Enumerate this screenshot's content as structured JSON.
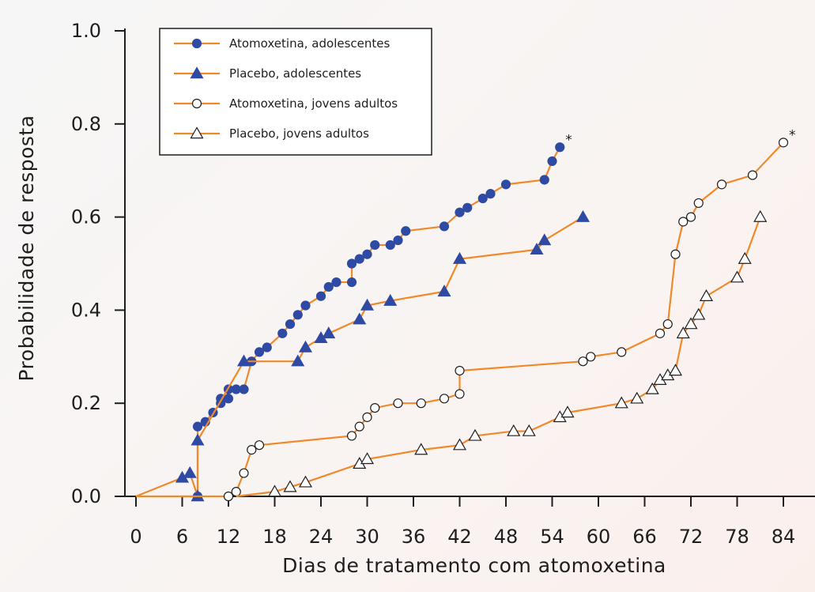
{
  "chart_data": {
    "type": "line",
    "xlabel": "Dias de tratamento com atomoxetina",
    "ylabel": "Probabilidade de resposta",
    "xlim": [
      0,
      84
    ],
    "ylim": [
      0,
      1.0
    ],
    "x_ticks": [
      "0",
      "6",
      "12",
      "18",
      "24",
      "30",
      "36",
      "42",
      "48",
      "54",
      "60",
      "66",
      "72",
      "78",
      "84"
    ],
    "y_ticks": [
      "0.0",
      "0.2",
      "0.4",
      "0.6",
      "0.8",
      "1.0"
    ],
    "grid": false,
    "legend_position": "top-left",
    "line_color": "#f0892a",
    "series": [
      {
        "name": "Atomoxetina, adolescentes",
        "marker": "filled-circle",
        "marker_color": "#2f4aa3",
        "end_annotation": "*",
        "points": [
          [
            0,
            0.0
          ],
          [
            8,
            0.0
          ],
          [
            8,
            0.15
          ],
          [
            9,
            0.16
          ],
          [
            10,
            0.18
          ],
          [
            11,
            0.2
          ],
          [
            11,
            0.21
          ],
          [
            12,
            0.21
          ],
          [
            12,
            0.23
          ],
          [
            13,
            0.23
          ],
          [
            14,
            0.23
          ],
          [
            15,
            0.29
          ],
          [
            16,
            0.31
          ],
          [
            17,
            0.32
          ],
          [
            19,
            0.35
          ],
          [
            20,
            0.37
          ],
          [
            21,
            0.39
          ],
          [
            22,
            0.41
          ],
          [
            24,
            0.43
          ],
          [
            25,
            0.45
          ],
          [
            26,
            0.46
          ],
          [
            28,
            0.46
          ],
          [
            28,
            0.5
          ],
          [
            29,
            0.51
          ],
          [
            30,
            0.52
          ],
          [
            31,
            0.54
          ],
          [
            33,
            0.54
          ],
          [
            34,
            0.55
          ],
          [
            35,
            0.57
          ],
          [
            40,
            0.58
          ],
          [
            42,
            0.61
          ],
          [
            43,
            0.62
          ],
          [
            45,
            0.64
          ],
          [
            46,
            0.65
          ],
          [
            48,
            0.67
          ],
          [
            53,
            0.68
          ],
          [
            54,
            0.72
          ],
          [
            55,
            0.75
          ]
        ]
      },
      {
        "name": "Placebo, adolescentes",
        "marker": "filled-triangle",
        "marker_color": "#2f4aa3",
        "points": [
          [
            0,
            0.0
          ],
          [
            6,
            0.04
          ],
          [
            7,
            0.05
          ],
          [
            8,
            0.0
          ],
          [
            8,
            0.12
          ],
          [
            14,
            0.29
          ],
          [
            21,
            0.29
          ],
          [
            22,
            0.32
          ],
          [
            24,
            0.34
          ],
          [
            25,
            0.35
          ],
          [
            29,
            0.38
          ],
          [
            30,
            0.41
          ],
          [
            33,
            0.42
          ],
          [
            40,
            0.44
          ],
          [
            42,
            0.51
          ],
          [
            52,
            0.53
          ],
          [
            53,
            0.55
          ],
          [
            58,
            0.6
          ]
        ]
      },
      {
        "name": "Atomoxetina, jovens adultos",
        "marker": "open-circle",
        "marker_color": "#ffffff",
        "end_annotation": "*",
        "points": [
          [
            6,
            0.0
          ],
          [
            12,
            0.0
          ],
          [
            13,
            0.01
          ],
          [
            14,
            0.05
          ],
          [
            15,
            0.1
          ],
          [
            16,
            0.11
          ],
          [
            28,
            0.13
          ],
          [
            29,
            0.15
          ],
          [
            30,
            0.17
          ],
          [
            31,
            0.19
          ],
          [
            34,
            0.2
          ],
          [
            37,
            0.2
          ],
          [
            40,
            0.21
          ],
          [
            42,
            0.22
          ],
          [
            42,
            0.27
          ],
          [
            58,
            0.29
          ],
          [
            59,
            0.3
          ],
          [
            63,
            0.31
          ],
          [
            68,
            0.35
          ],
          [
            69,
            0.37
          ],
          [
            70,
            0.52
          ],
          [
            71,
            0.59
          ],
          [
            72,
            0.6
          ],
          [
            73,
            0.63
          ],
          [
            76,
            0.67
          ],
          [
            80,
            0.69
          ],
          [
            84,
            0.76
          ]
        ]
      },
      {
        "name": "Placebo, jovens adultos",
        "marker": "open-triangle",
        "marker_color": "#ffffff",
        "points": [
          [
            13,
            0.0
          ],
          [
            18,
            0.01
          ],
          [
            20,
            0.02
          ],
          [
            22,
            0.03
          ],
          [
            29,
            0.07
          ],
          [
            30,
            0.08
          ],
          [
            37,
            0.1
          ],
          [
            42,
            0.11
          ],
          [
            44,
            0.13
          ],
          [
            49,
            0.14
          ],
          [
            51,
            0.14
          ],
          [
            55,
            0.17
          ],
          [
            56,
            0.18
          ],
          [
            63,
            0.2
          ],
          [
            65,
            0.21
          ],
          [
            67,
            0.23
          ],
          [
            68,
            0.25
          ],
          [
            69,
            0.26
          ],
          [
            70,
            0.27
          ],
          [
            71,
            0.35
          ],
          [
            72,
            0.37
          ],
          [
            73,
            0.39
          ],
          [
            74,
            0.43
          ],
          [
            78,
            0.47
          ],
          [
            79,
            0.51
          ],
          [
            81,
            0.6
          ]
        ]
      }
    ]
  }
}
